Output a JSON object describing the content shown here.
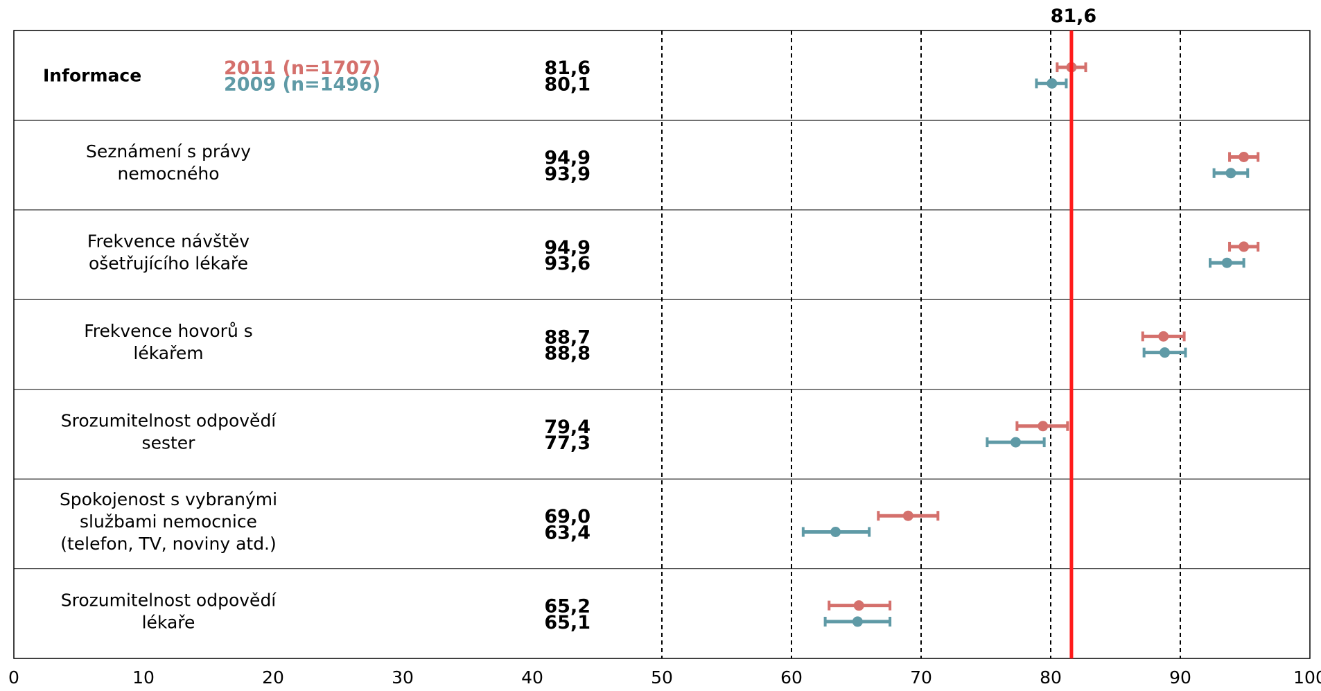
{
  "chart_data": {
    "type": "scatter",
    "xlim": [
      0,
      100
    ],
    "x_ticks": [
      "0",
      "10",
      "20",
      "30",
      "40",
      "50",
      "60",
      "70",
      "80",
      "90",
      "100"
    ],
    "x_tick_values": [
      0,
      10,
      20,
      30,
      40,
      50,
      60,
      70,
      80,
      90,
      100
    ],
    "dashed_gridlines_at": [
      50,
      60,
      70,
      80,
      90
    ],
    "reference_line": {
      "value": 81.6,
      "label": "81,6",
      "color": "#ff1a1a"
    },
    "legend": {
      "placement": "top-left, inside first row",
      "entries": [
        {
          "label": "2011 (n=1707)",
          "color": "#d4706c"
        },
        {
          "label": "2009 (n=1496)",
          "color": "#5f9aa6"
        }
      ]
    },
    "series": [
      {
        "name": "2011 (n=1707)",
        "color": "#d4706c"
      },
      {
        "name": "2009 (n=1496)",
        "color": "#5f9aa6"
      }
    ],
    "rows": [
      {
        "label_lines": [
          "Informace"
        ],
        "bold": true,
        "points": [
          {
            "value": 81.6,
            "value_label": "81,6",
            "ci": [
              80.5,
              82.7
            ]
          },
          {
            "value": 80.1,
            "value_label": "80,1",
            "ci": [
              78.9,
              81.2
            ]
          }
        ]
      },
      {
        "label_lines": [
          "Seznámení s právy",
          "nemocného"
        ],
        "bold": false,
        "points": [
          {
            "value": 94.9,
            "value_label": "94,9",
            "ci": [
              93.8,
              96.0
            ]
          },
          {
            "value": 93.9,
            "value_label": "93,9",
            "ci": [
              92.6,
              95.2
            ]
          }
        ]
      },
      {
        "label_lines": [
          "Frekvence návštěv",
          "ošetřujícího lékaře"
        ],
        "bold": false,
        "points": [
          {
            "value": 94.9,
            "value_label": "94,9",
            "ci": [
              93.8,
              96.0
            ]
          },
          {
            "value": 93.6,
            "value_label": "93,6",
            "ci": [
              92.3,
              94.9
            ]
          }
        ]
      },
      {
        "label_lines": [
          "Frekvence hovorů s",
          "lékařem"
        ],
        "bold": false,
        "points": [
          {
            "value": 88.7,
            "value_label": "88,7",
            "ci": [
              87.1,
              90.3
            ]
          },
          {
            "value": 88.8,
            "value_label": "88,8",
            "ci": [
              87.2,
              90.4
            ]
          }
        ]
      },
      {
        "label_lines": [
          "Srozumitelnost odpovědí",
          "sester"
        ],
        "bold": false,
        "points": [
          {
            "value": 79.4,
            "value_label": "79,4",
            "ci": [
              77.4,
              81.3
            ]
          },
          {
            "value": 77.3,
            "value_label": "77,3",
            "ci": [
              75.1,
              79.5
            ]
          }
        ]
      },
      {
        "label_lines": [
          "Spokojenost s vybranými",
          "službami nemocnice",
          "(telefon, TV, noviny atd.)"
        ],
        "bold": false,
        "points": [
          {
            "value": 69.0,
            "value_label": "69,0",
            "ci": [
              66.7,
              71.3
            ]
          },
          {
            "value": 63.4,
            "value_label": "63,4",
            "ci": [
              60.9,
              66.0
            ]
          }
        ]
      },
      {
        "label_lines": [
          "Srozumitelnost odpovědí",
          "lékaře"
        ],
        "bold": false,
        "points": [
          {
            "value": 65.2,
            "value_label": "65,2",
            "ci": [
              62.9,
              67.6
            ]
          },
          {
            "value": 65.1,
            "value_label": "65,1",
            "ci": [
              62.6,
              67.6
            ]
          }
        ]
      }
    ]
  }
}
